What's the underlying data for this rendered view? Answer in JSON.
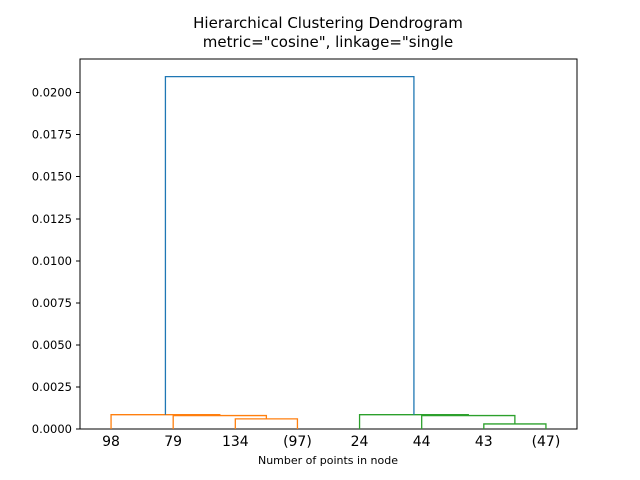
{
  "figure": {
    "background": "#ffffff"
  },
  "chart_data": {
    "type": "dendrogram",
    "title": "Hierarchical Clustering Dendrogram",
    "subtitle": "metric=\"cosine\", linkage=\"single",
    "xlabel": "Number of points in node",
    "ylabel": "",
    "legend": "none",
    "grid": false,
    "xlim": [
      0,
      80
    ],
    "ylim": [
      0,
      0.022
    ],
    "ytick_values": [
      0.0,
      0.0025,
      0.005,
      0.0075,
      0.01,
      0.0125,
      0.015,
      0.0175,
      0.02
    ],
    "ytick_labels": [
      "0.0000",
      "0.0025",
      "0.0050",
      "0.0075",
      "0.0100",
      "0.0125",
      "0.0150",
      "0.0175",
      "0.0200"
    ],
    "leaves": [
      {
        "x": 5,
        "label": "98"
      },
      {
        "x": 15,
        "label": "79"
      },
      {
        "x": 25,
        "label": "134"
      },
      {
        "x": 35,
        "label": "(97)"
      },
      {
        "x": 45,
        "label": "24"
      },
      {
        "x": 55,
        "label": "44"
      },
      {
        "x": 65,
        "label": "43"
      },
      {
        "x": 75,
        "label": "(47)"
      }
    ],
    "colors": {
      "above_threshold_link": "#1f77b4",
      "cluster_left": "#ff7f0e",
      "cluster_right": "#2ca02c",
      "axis": "#000000"
    },
    "links": [
      {
        "x1": 25,
        "h1": 0,
        "x2": 35,
        "h2": 0,
        "height": 0.0006,
        "color": "#ff7f0e"
      },
      {
        "x1": 15,
        "h1": 0,
        "x2": 30,
        "h2": 0.0006,
        "height": 0.0008,
        "color": "#ff7f0e"
      },
      {
        "x1": 5,
        "h1": 0,
        "x2": 22.5,
        "h2": 0.0008,
        "height": 0.00085,
        "color": "#ff7f0e"
      },
      {
        "x1": 65,
        "h1": 0,
        "x2": 75,
        "h2": 0,
        "height": 0.0003,
        "color": "#2ca02c"
      },
      {
        "x1": 55,
        "h1": 0,
        "x2": 70,
        "h2": 0.0003,
        "height": 0.0008,
        "color": "#2ca02c"
      },
      {
        "x1": 45,
        "h1": 0,
        "x2": 62.5,
        "h2": 0.0008,
        "height": 0.00085,
        "color": "#2ca02c"
      },
      {
        "x1": 13.75,
        "h1": 0.00085,
        "x2": 53.75,
        "h2": 0.00085,
        "height": 0.02095,
        "color": "#1f77b4"
      }
    ]
  }
}
